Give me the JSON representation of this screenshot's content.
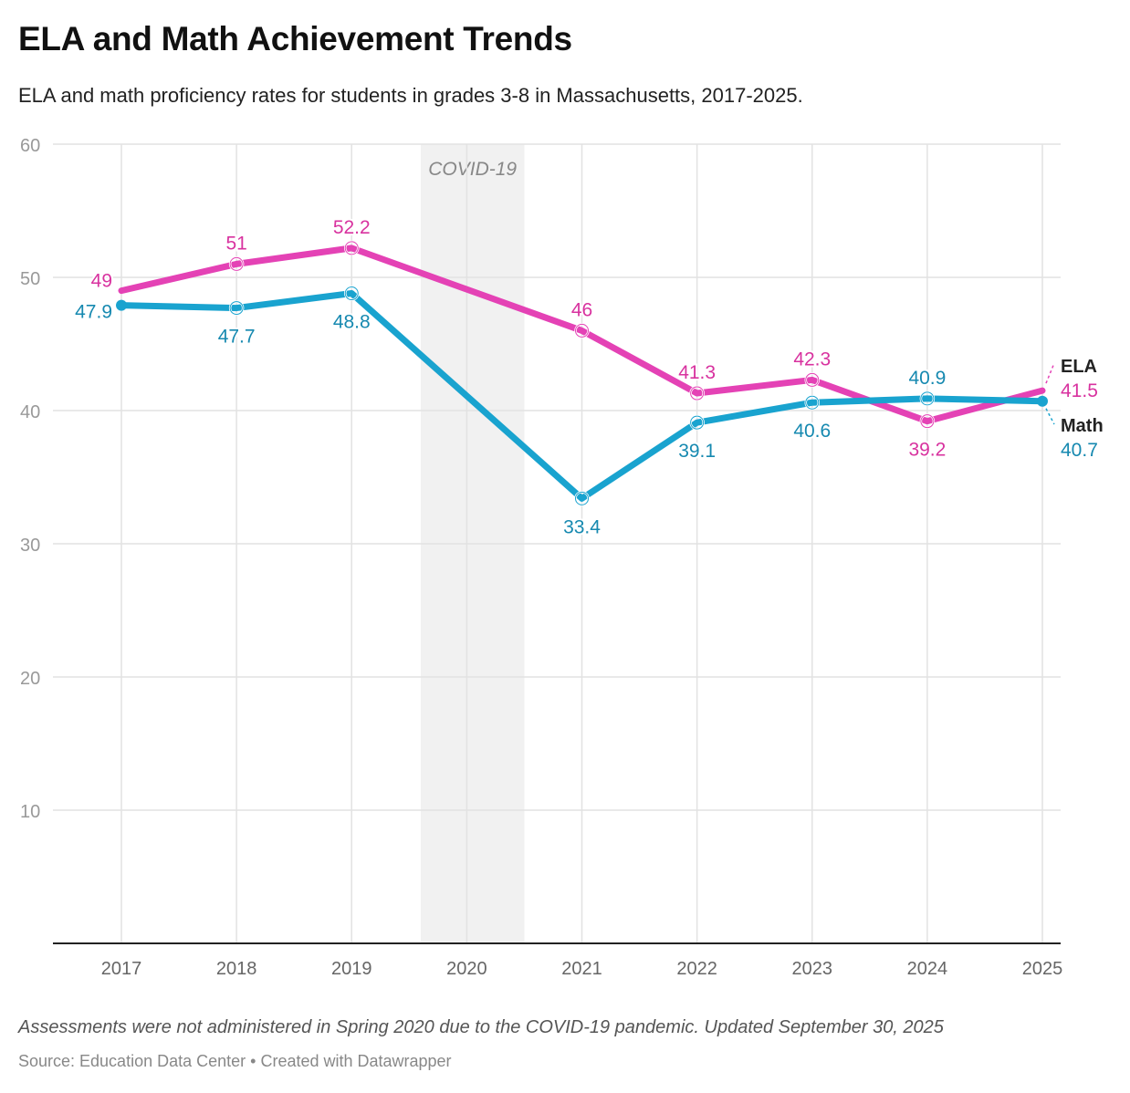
{
  "title": "ELA and Math Achievement Trends",
  "subtitle": "ELA and math proficiency rates for students in grades 3-8 in Massachusetts, 2017-2025.",
  "note": "Assessments were not administered in Spring 2020 due to the COVID-19 pandemic. Updated September 30, 2025",
  "source": "Source: Education Data Center • Created with Datawrapper",
  "chart_data": {
    "type": "line",
    "x": [
      2017,
      2018,
      2019,
      2021,
      2022,
      2023,
      2024,
      2025
    ],
    "x_ticks": [
      "2017",
      "2018",
      "2019",
      "2020",
      "2021",
      "2022",
      "2023",
      "2024",
      "2025"
    ],
    "y_ticks": [
      "10",
      "20",
      "30",
      "40",
      "50",
      "60"
    ],
    "ylim": [
      0,
      60
    ],
    "xlim": [
      2017,
      2025
    ],
    "grid": true,
    "annotation": {
      "label": "COVID-19",
      "from": 2019.6,
      "to": 2020.5
    },
    "series": [
      {
        "name": "ELA",
        "color": "#e442b5",
        "label_color": "#d8329f",
        "values": [
          49,
          51,
          52.2,
          46,
          41.3,
          42.3,
          39.2,
          41.5
        ],
        "labels": [
          "49",
          "51",
          "52.2",
          "46",
          "41.3",
          "42.3",
          "39.2",
          "41.5"
        ],
        "label_pos": [
          "left",
          "above",
          "above",
          "above",
          "above",
          "above",
          "below",
          "end"
        ]
      },
      {
        "name": "Math",
        "color": "#19a3cf",
        "label_color": "#1689b0",
        "values": [
          47.9,
          47.7,
          48.8,
          33.4,
          39.1,
          40.6,
          40.9,
          40.7
        ],
        "labels": [
          "47.9",
          "47.7",
          "48.8",
          "33.4",
          "39.1",
          "40.6",
          "40.9",
          "40.7"
        ],
        "label_pos": [
          "left",
          "below",
          "below",
          "below",
          "below",
          "below",
          "above",
          "end"
        ]
      }
    ]
  }
}
